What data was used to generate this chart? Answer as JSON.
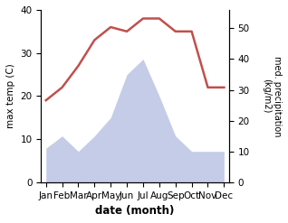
{
  "months": [
    "Jan",
    "Feb",
    "Mar",
    "Apr",
    "May",
    "Jun",
    "Jul",
    "Aug",
    "Sep",
    "Oct",
    "Nov",
    "Dec"
  ],
  "temperature": [
    19,
    22,
    27,
    33,
    36,
    35,
    38,
    38,
    35,
    35,
    22,
    22
  ],
  "precipitation": [
    11,
    15,
    10,
    15,
    21,
    35,
    40,
    28,
    15,
    10,
    10,
    10
  ],
  "temp_color": "#c0504d",
  "precip_fill_color": "#c5cce8",
  "temp_ylim": [
    0,
    40
  ],
  "precip_ylim": [
    0,
    56
  ],
  "temp_yticks": [
    0,
    10,
    20,
    30,
    40
  ],
  "precip_yticks": [
    0,
    10,
    20,
    30,
    40,
    50
  ],
  "ylabel_left": "max temp (C)",
  "ylabel_right": "med. precipitation\n(kg/m2)",
  "xlabel": "date (month)",
  "bg_color": "#ffffff"
}
